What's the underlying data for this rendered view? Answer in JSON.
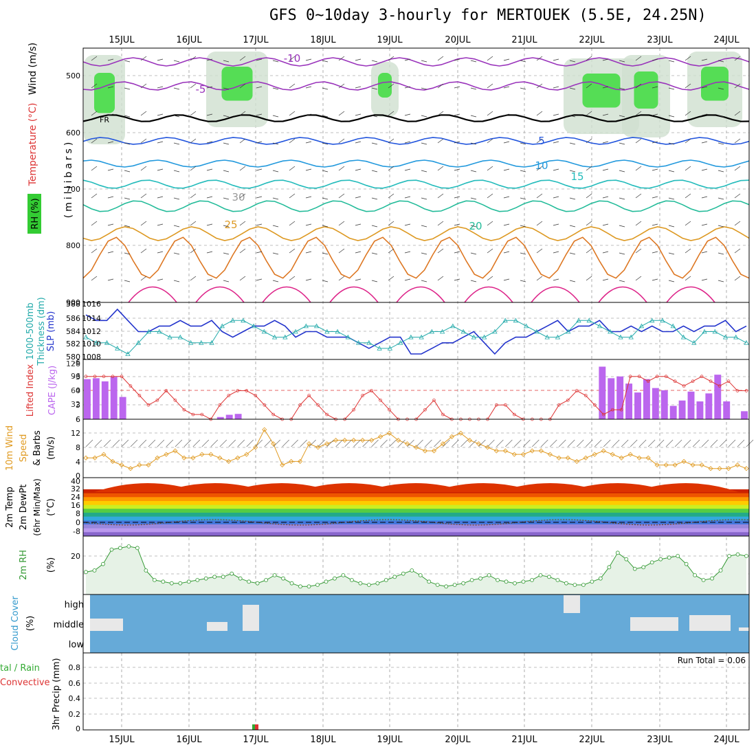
{
  "title": "GFS 0~10day 3-hourly for MERTOUEK (5.5E, 24.25N)",
  "dates": [
    "15JUL",
    "16JUL",
    "17JUL",
    "18JUL",
    "19JUL",
    "20JUL",
    "21JUL",
    "22JUL",
    "23JUL",
    "24JUL"
  ],
  "panels": {
    "upper": {
      "labels": [
        "Wind (m/s)",
        "Temperature (°C)",
        "RH (%)",
        "(millibars)"
      ],
      "y_ticks": [
        "500",
        "600",
        "700",
        "800",
        "900"
      ],
      "contour_labels": [
        "-10",
        "-5",
        "FR",
        "5",
        "10",
        "15",
        "20",
        "25",
        "30"
      ]
    },
    "slp": {
      "labels": [
        "1000-500mb",
        "Thickness (dm)",
        "SLP (mb)"
      ],
      "left_ticks": [
        "588",
        "586",
        "584",
        "582",
        "580"
      ],
      "right_ticks": [
        "1016",
        "1014",
        "1012",
        "1010",
        "1008"
      ]
    },
    "cape": {
      "labels": [
        "Lifted Index",
        "CAPE (J/kg)"
      ],
      "left_ticks": [
        "-6",
        "-3",
        "0",
        "3",
        "6"
      ],
      "right_ticks": [
        "128",
        "96",
        "64",
        "32"
      ]
    },
    "wind10": {
      "labels": [
        "10m Wind",
        "Speed",
        "& Barbs",
        "(m/s)"
      ],
      "y_ticks": [
        "12",
        "8",
        "4",
        "0"
      ]
    },
    "temp2m": {
      "labels": [
        "2m Temp",
        "2m DewPt",
        "(6hr Min/Max)",
        "(°C)"
      ],
      "y_ticks": [
        "40",
        "32",
        "24",
        "16",
        "8",
        "0",
        "-8"
      ]
    },
    "rh2m": {
      "labels": [
        "2m RH",
        "(%)"
      ],
      "y_ticks": [
        "20"
      ]
    },
    "cloud": {
      "labels": [
        "Cloud Cover",
        "(%)"
      ],
      "levels": [
        "high",
        "middle",
        "low"
      ]
    },
    "precip": {
      "labels": [
        "tal / Rain",
        "Convective",
        "3hr Precip (mm)"
      ],
      "y_ticks": [
        "0.8",
        "0.6",
        "0.4",
        "0.2",
        "0"
      ],
      "run_total": "Run Total = 0.06"
    }
  },
  "colors": {
    "slp": "#2233cc",
    "thickness": "#22aaaa",
    "cape": "#bb66ee",
    "lifted": "#dd3333",
    "wind": "#e09a20",
    "rh": "#339933",
    "cloud_bg": "#66aad8",
    "cloud_fill": "#e8e8e8"
  },
  "chart_data": [
    {
      "type": "line",
      "title": "SLP / 1000-500mb Thickness",
      "series": [
        {
          "name": "SLP (mb)",
          "values": [
            1015,
            1014,
            1014,
            1016,
            1014,
            1012,
            1012,
            1013,
            1013,
            1014,
            1013,
            1013,
            1014,
            1012,
            1011,
            1012,
            1013,
            1013,
            1014,
            1013,
            1011,
            1012,
            1012,
            1011,
            1011,
            1011,
            1010,
            1009,
            1010,
            1011,
            1011,
            1008,
            1008,
            1009,
            1010,
            1010,
            1011,
            1012,
            1010,
            1008,
            1010,
            1011,
            1011,
            1012,
            1013,
            1014,
            1012,
            1013,
            1013,
            1014,
            1012,
            1012,
            1013,
            1012,
            1013,
            1012,
            1012,
            1013,
            1012,
            1013,
            1013,
            1014,
            1012,
            1013
          ]
        },
        {
          "name": "Thickness (dm)",
          "values": [
            583,
            582,
            582,
            581,
            580,
            582,
            584,
            584,
            583,
            583,
            582,
            582,
            582,
            585,
            586,
            586,
            585,
            584,
            583,
            583,
            584,
            585,
            585,
            584,
            584,
            583,
            582,
            582,
            581,
            581,
            582,
            583,
            583,
            584,
            584,
            585,
            584,
            583,
            583,
            584,
            586,
            586,
            585,
            584,
            583,
            583,
            584,
            586,
            586,
            585,
            584,
            583,
            583,
            585,
            586,
            586,
            585,
            583,
            582,
            584,
            584,
            583,
            583,
            582
          ]
        }
      ]
    },
    {
      "type": "bar",
      "title": "CAPE (J/kg)",
      "values": [
        90,
        92,
        85,
        95,
        50,
        0,
        0,
        0,
        0,
        0,
        0,
        0,
        0,
        0,
        0,
        5,
        10,
        12,
        0,
        0,
        0,
        0,
        0,
        0,
        0,
        0,
        0,
        0,
        0,
        0,
        0,
        0,
        0,
        0,
        0,
        0,
        0,
        0,
        0,
        0,
        0,
        0,
        0,
        0,
        0,
        0,
        0,
        0,
        0,
        0,
        0,
        0,
        0,
        0,
        0,
        0,
        0,
        0,
        118,
        92,
        96,
        80,
        60,
        90,
        70,
        65,
        30,
        42,
        62,
        40,
        58,
        100,
        40,
        0,
        18
      ]
    },
    {
      "type": "line",
      "title": "Lifted Index",
      "ylim": [
        6,
        -6
      ],
      "values": [
        -3,
        -3,
        -3,
        -3,
        -3,
        -1,
        1,
        3,
        2,
        0,
        2,
        4,
        5,
        5,
        6,
        3,
        1,
        0,
        0,
        1,
        3,
        5,
        6,
        6,
        3,
        1,
        3,
        5,
        6,
        6,
        4,
        1,
        0,
        2,
        4,
        6,
        6,
        6,
        4,
        2,
        5,
        6,
        6,
        6,
        6,
        6,
        3,
        3,
        5,
        6,
        6,
        6,
        6,
        3,
        2,
        0,
        1,
        3,
        5,
        4,
        4,
        -3,
        -3,
        -2,
        -3,
        -3,
        -2,
        -1,
        -2,
        -3,
        -2,
        -1,
        -2,
        0,
        0
      ]
    },
    {
      "type": "line",
      "title": "10m Wind Speed (m/s)",
      "values": [
        5,
        5,
        6,
        4,
        3,
        2,
        3,
        3,
        5,
        6,
        7,
        5,
        5,
        6,
        6,
        5,
        4,
        5,
        6,
        8,
        13,
        9,
        3,
        4,
        4,
        9,
        8,
        9,
        10,
        10,
        10,
        10,
        10,
        11,
        12,
        10,
        9,
        8,
        7,
        7,
        9,
        11,
        12,
        10,
        9,
        8,
        7,
        7,
        6,
        6,
        7,
        7,
        6,
        5,
        5,
        4,
        5,
        6,
        7,
        6,
        5,
        6,
        5,
        5,
        3,
        3,
        3,
        4,
        3,
        3,
        2,
        2,
        2,
        3,
        2
      ]
    },
    {
      "type": "line",
      "title": "2m RH (%)",
      "values": [
        14,
        15,
        19,
        28,
        29,
        30,
        29,
        15,
        9,
        8,
        7,
        7,
        8,
        9,
        10,
        11,
        11,
        13,
        10,
        8,
        7,
        9,
        12,
        10,
        7,
        5,
        5,
        6,
        8,
        10,
        12,
        9,
        7,
        6,
        7,
        9,
        11,
        13,
        15,
        12,
        8,
        6,
        5,
        6,
        7,
        9,
        10,
        12,
        9,
        8,
        7,
        8,
        9,
        12,
        11,
        9,
        7,
        6,
        6,
        8,
        10,
        17,
        26,
        22,
        16,
        17,
        20,
        22,
        23,
        24,
        19,
        12,
        9,
        10,
        15,
        24,
        25,
        24
      ]
    },
    {
      "type": "bar",
      "title": "3hr Precip (mm)",
      "categories": [
        "17JUL"
      ],
      "values": [
        0.06
      ]
    }
  ]
}
